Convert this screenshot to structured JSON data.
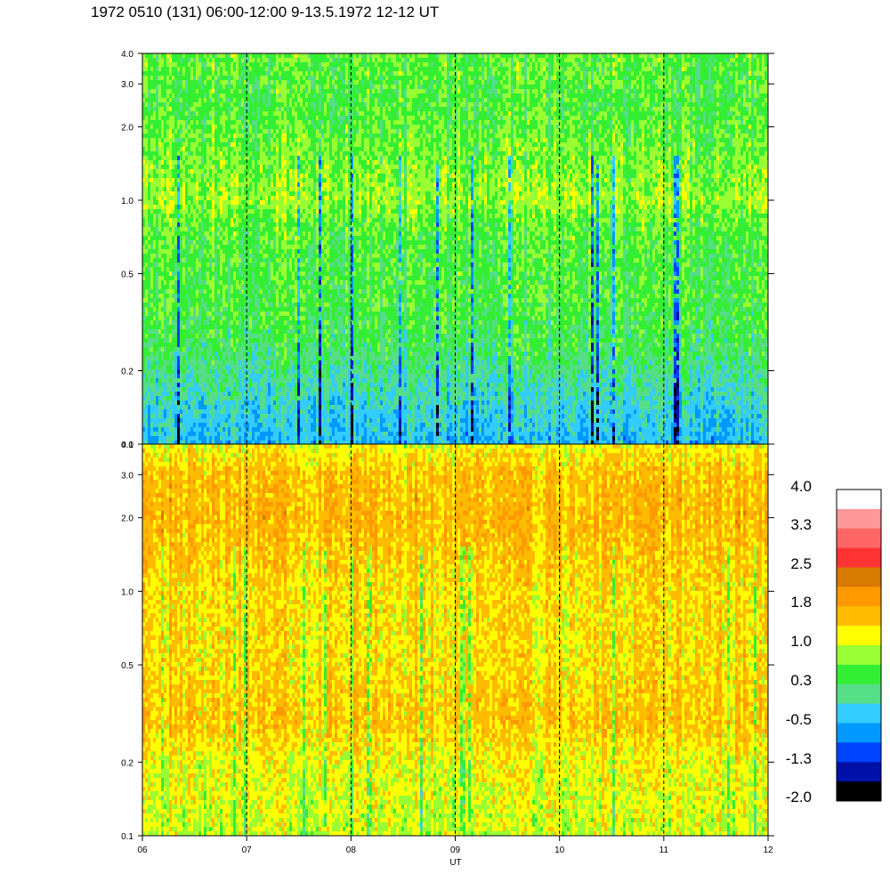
{
  "title": "1972 0510 (131) 06:00-12:00 9-13.5.1972  12-12 UT",
  "chart_data": [
    {
      "type": "heatmap",
      "panel": "upper",
      "y_scale": "log",
      "ylim": [
        0.1,
        4.0
      ],
      "y_ticks": [
        "0.1",
        "0.2",
        "0.5",
        "1.0",
        "2.0",
        "3.0",
        "4.0"
      ],
      "xlim": [
        6,
        12
      ],
      "x_ticks": [
        "06",
        "07",
        "08",
        "09",
        "10",
        "11",
        "12"
      ],
      "dashed_lines_at_x": [
        7,
        8,
        9,
        10,
        11
      ],
      "band_levels_by_frequency": [
        {
          "f": 0.1,
          "level": -0.6
        },
        {
          "f": 0.15,
          "level": -0.3
        },
        {
          "f": 0.25,
          "level": 0.2
        },
        {
          "f": 0.4,
          "level": 0.4
        },
        {
          "f": 0.6,
          "level": 0.4
        },
        {
          "f": 0.8,
          "level": 0.5
        },
        {
          "f": 1.0,
          "level": 0.8
        },
        {
          "f": 1.5,
          "level": 0.6
        },
        {
          "f": 2.5,
          "level": 0.4
        },
        {
          "f": 4.0,
          "level": 0.5
        }
      ]
    },
    {
      "type": "heatmap",
      "panel": "lower",
      "y_scale": "log",
      "ylim": [
        0.1,
        4.0
      ],
      "y_ticks": [
        "0.1",
        "0.2",
        "0.5",
        "1.0",
        "2.0",
        "3.0",
        "4.0"
      ],
      "xlim": [
        6,
        12
      ],
      "x_ticks": [
        "06",
        "07",
        "08",
        "09",
        "10",
        "11",
        "12"
      ],
      "xlabel": "UT",
      "dashed_lines_at_x": [
        7,
        8,
        9,
        10,
        11
      ],
      "band_levels_by_frequency": [
        {
          "f": 0.1,
          "level": 1.0
        },
        {
          "f": 0.2,
          "level": 1.2
        },
        {
          "f": 0.3,
          "level": 1.6
        },
        {
          "f": 0.5,
          "level": 1.4
        },
        {
          "f": 1.0,
          "level": 1.4
        },
        {
          "f": 2.0,
          "level": 1.7
        },
        {
          "f": 3.0,
          "level": 1.6
        },
        {
          "f": 4.0,
          "level": 1.2
        }
      ]
    }
  ],
  "colorbar": {
    "labels": [
      "4.0",
      "3.3",
      "2.5",
      "1.8",
      "1.0",
      "0.3",
      "-0.5",
      "-1.3",
      "-2.0"
    ],
    "colors": [
      "#ffffff",
      "#ff9999",
      "#ff6666",
      "#ff3333",
      "#d97a00",
      "#ff9900",
      "#ffbb00",
      "#ffff00",
      "#99ff33",
      "#33ee33",
      "#55dd88",
      "#33ccff",
      "#0099ff",
      "#0044ff",
      "#0011aa",
      "#000000"
    ]
  }
}
